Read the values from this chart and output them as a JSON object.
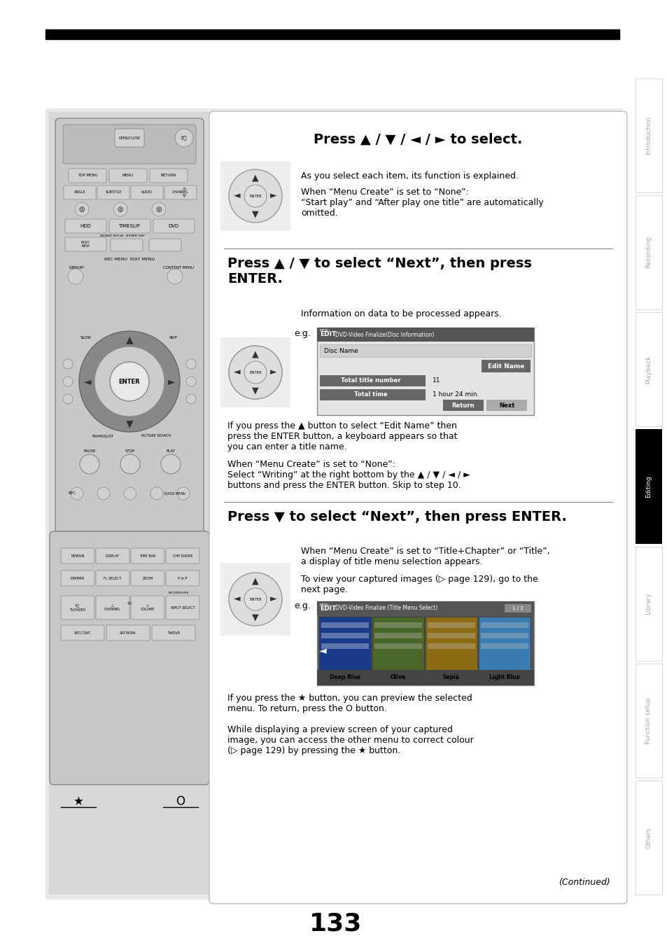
{
  "page_bg": "#ffffff",
  "top_bar_color": "#000000",
  "sidebar_labels": [
    "Introduction",
    "Recording",
    "Playback",
    "Editing",
    "Library",
    "Function setup",
    "Others"
  ],
  "sidebar_active": "Editing",
  "sidebar_active_bg": "#000000",
  "sidebar_active_fg": "#ffffff",
  "sidebar_inactive_fg": "#aaaaaa",
  "page_number": "133",
  "main_panel_bg": "#e8e8e8",
  "content_bg": "#ffffff",
  "section1_title": "Press ▲ / ▼ / ◄ / ► to select.",
  "section2_title": "Press ▲ / ▼ to select “Next”, then press\nENTER.",
  "section3_title": "Press ▼ to select “Next”, then press ENTER.",
  "continued_text": "(Continued)",
  "section1_text1": "As you select each item, its function is explained.",
  "section1_text2": "When “Menu Create” is set to “None”:\n“Start play” and “After play one title” are automatically\nomitted.",
  "section2_text1": "Information on data to be processed appears.",
  "section2_eg": "e.g.",
  "section2_text2": "If you press the ▲ button to select “Edit Name” then\npress the ENTER button, a keyboard appears so that\nyou can enter a title name.",
  "section2_text3": "When “Menu Create” is set to “None”:\nSelect “Writing” at the right bottom by the ▲ / ▼ / ◄ / ►\nbuttons and press the ENTER button. Skip to step 10.",
  "section3_text1": "When “Menu Create” is set to “Title+Chapter” or “Title”,\na display of title menu selection appears.",
  "section3_text2": "To view your captured images (▷ page 129), go to the\nnext page.",
  "section3_eg": "e.g.",
  "section3_text3": "If you press the ★ button, you can preview the selected\nmenu. To return, press the O button.",
  "section3_text4": "While displaying a preview screen of your captured\nimage, you can access the other menu to correct colour\n(▷ page 129) by pressing the ★ button."
}
